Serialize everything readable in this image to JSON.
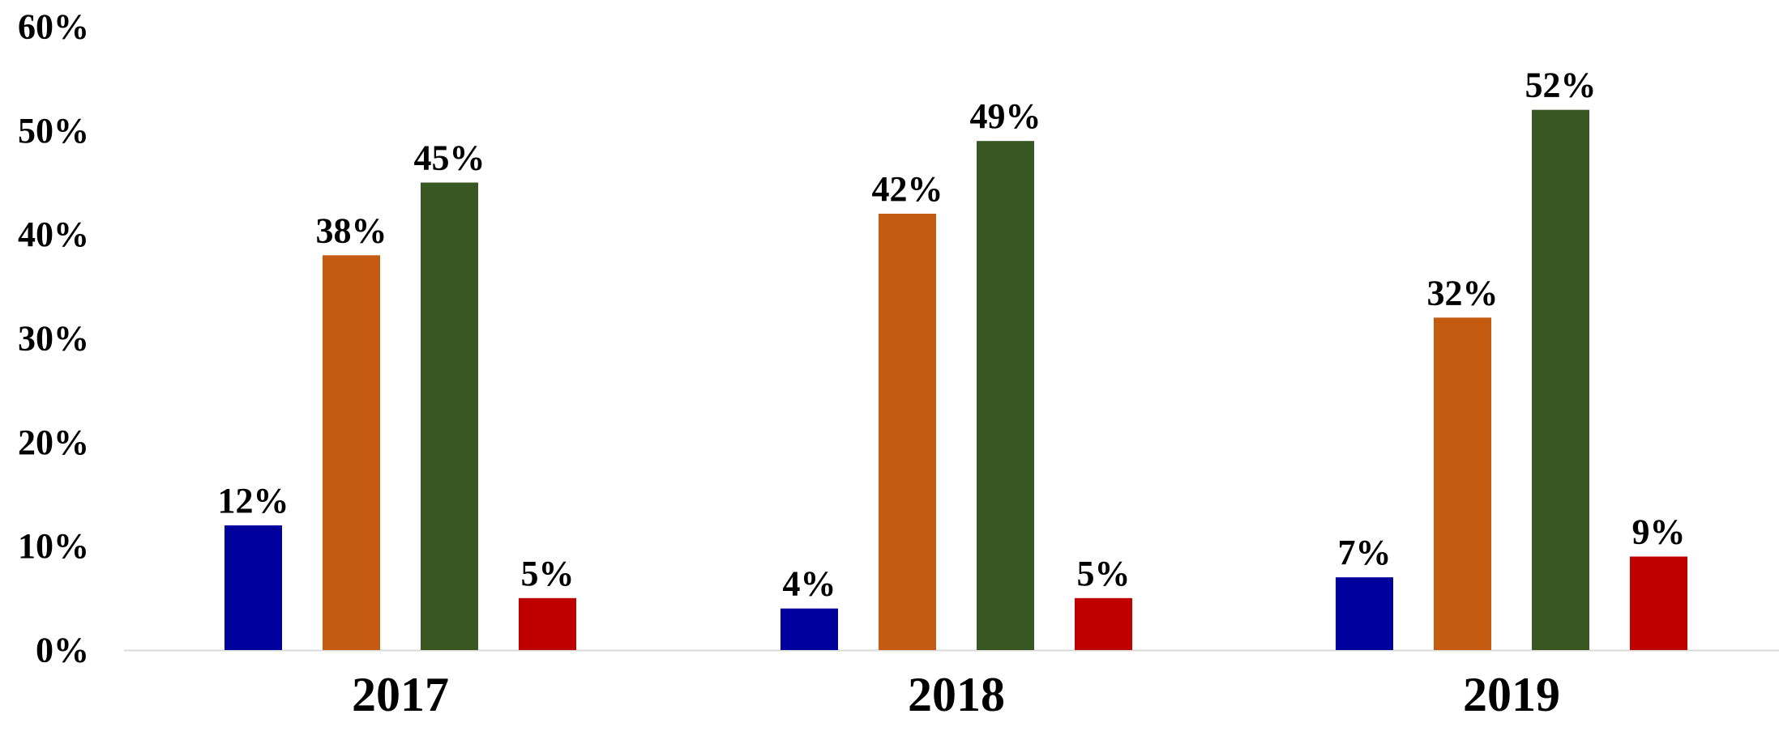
{
  "chart_data": {
    "type": "bar",
    "title": "",
    "xlabel": "",
    "ylabel": "",
    "categories": [
      "2017",
      "2018",
      "2019"
    ],
    "ylim": [
      0,
      60
    ],
    "yticks": [
      "0%",
      "10%",
      "20%",
      "30%",
      "40%",
      "50%",
      "60%"
    ],
    "grid": false,
    "legend": "none",
    "value_suffix": "%",
    "series": [
      {
        "color": "#00009C",
        "values": [
          12,
          4,
          7
        ]
      },
      {
        "color": "#C55A11",
        "values": [
          38,
          42,
          32
        ]
      },
      {
        "color": "#385723",
        "values": [
          45,
          49,
          52
        ]
      },
      {
        "color": "#C00000",
        "values": [
          5,
          5,
          9
        ]
      }
    ]
  }
}
